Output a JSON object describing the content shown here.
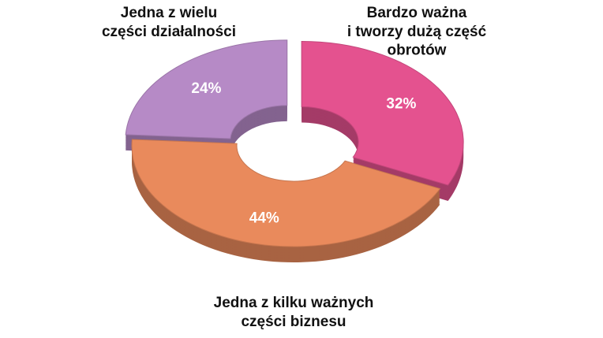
{
  "chart_data": {
    "type": "donut",
    "categories": [
      "Bardzo ważna\ni tworzy dużą część\nobrotów",
      "Jedna z kilku ważnych\nczęści biznesu",
      "Jedna z wielu\nczęści działalności"
    ],
    "values": [
      32,
      44,
      24
    ],
    "value_labels": [
      "32%",
      "44%",
      "24%"
    ],
    "colors": [
      "#e4528f",
      "#e98a5c",
      "#b68ac6"
    ]
  }
}
